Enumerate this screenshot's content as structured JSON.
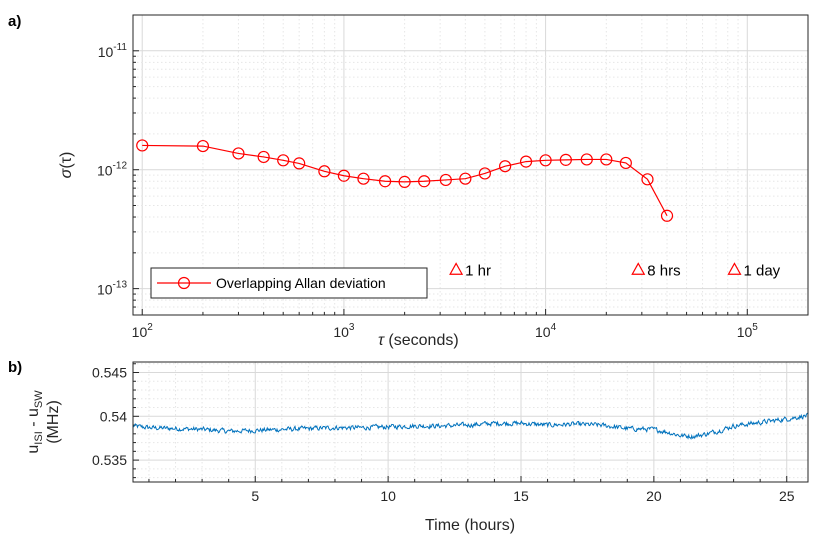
{
  "chart_data": [
    {
      "panel_label": "a)",
      "type": "line",
      "x_scale": "log",
      "y_scale": "log",
      "xlabel_symbol": "τ",
      "xlabel_text": " (seconds)",
      "ylabel_symbol": "σ",
      "ylabel_text": "(τ)",
      "xlim": [
        90,
        200000
      ],
      "ylim": [
        6e-14,
        2e-11
      ],
      "x_ticks": [
        {
          "value": 100,
          "base": "10",
          "exp": "2"
        },
        {
          "value": 1000,
          "base": "10",
          "exp": "3"
        },
        {
          "value": 10000,
          "base": "10",
          "exp": "4"
        },
        {
          "value": 100000,
          "base": "10",
          "exp": "5"
        }
      ],
      "y_ticks": [
        {
          "value": 1e-13,
          "base": "10",
          "exp": "-13"
        },
        {
          "value": 1e-12,
          "base": "10",
          "exp": "-12"
        },
        {
          "value": 1e-11,
          "base": "10",
          "exp": "-11"
        }
      ],
      "grid": true,
      "legend_position": "bottom-left",
      "series": [
        {
          "name": "Overlapping Allan deviation",
          "color": "#ff0000",
          "marker": "circle",
          "x": [
            100,
            200,
            300,
            400,
            500,
            600,
            800,
            1000,
            1250,
            1600,
            2000,
            2500,
            3200,
            4000,
            5000,
            6300,
            8000,
            10000,
            12600,
            16000,
            20000,
            25000,
            32000,
            40000
          ],
          "y": [
            1.6e-12,
            1.58e-12,
            1.37e-12,
            1.28e-12,
            1.2e-12,
            1.13e-12,
            9.7e-13,
            8.9e-13,
            8.4e-13,
            8e-13,
            7.9e-13,
            8e-13,
            8.2e-13,
            8.4e-13,
            9.3e-13,
            1.07e-12,
            1.17e-12,
            1.2e-12,
            1.21e-12,
            1.22e-12,
            1.22e-12,
            1.14e-12,
            8.3e-13,
            4.1e-13
          ]
        }
      ],
      "annotations": [
        {
          "text": "1 hr",
          "x": 3600,
          "y": 1.45e-13,
          "marker": "triangle",
          "color": "#ff0000"
        },
        {
          "text": "8 hrs",
          "x": 28800,
          "y": 1.45e-13,
          "marker": "triangle",
          "color": "#ff0000"
        },
        {
          "text": "1 day",
          "x": 86400,
          "y": 1.45e-13,
          "marker": "triangle",
          "color": "#ff0000"
        }
      ]
    },
    {
      "panel_label": "b)",
      "type": "line",
      "xlabel": "Time (hours)",
      "ylabel_line1": "u",
      "ylabel_sub1": "ISI",
      "ylabel_mid": " - u",
      "ylabel_sub2": "SW",
      "ylabel_line2": "(MHz)",
      "xlim": [
        0.4,
        25.8
      ],
      "ylim": [
        0.5325,
        0.5462
      ],
      "x_ticks": [
        5,
        10,
        15,
        20,
        25
      ],
      "y_ticks": [
        0.535,
        0.54,
        0.545
      ],
      "y_tick_labels": [
        "0.535",
        "0.54",
        "0.545"
      ],
      "grid": true,
      "series": [
        {
          "color": "#0072bd",
          "x": [
            0.4,
            1.0,
            2.0,
            3.0,
            4.0,
            5.0,
            6.0,
            7.0,
            8.0,
            9.0,
            10.0,
            11.0,
            12.0,
            13.0,
            14.0,
            15.0,
            16.0,
            17.0,
            18.0,
            19.0,
            20.0,
            20.5,
            21.0,
            21.5,
            22.0,
            22.5,
            23.0,
            24.0,
            25.0,
            25.8
          ],
          "y": [
            0.5389,
            0.5387,
            0.5386,
            0.5385,
            0.5383,
            0.5384,
            0.5385,
            0.5386,
            0.5387,
            0.5387,
            0.5388,
            0.5389,
            0.5389,
            0.539,
            0.5392,
            0.5392,
            0.539,
            0.5391,
            0.539,
            0.5386,
            0.5385,
            0.5382,
            0.5378,
            0.5377,
            0.538,
            0.5384,
            0.5389,
            0.5393,
            0.5397,
            0.5401
          ],
          "noise_amplitude": 0.0004
        }
      ]
    }
  ]
}
